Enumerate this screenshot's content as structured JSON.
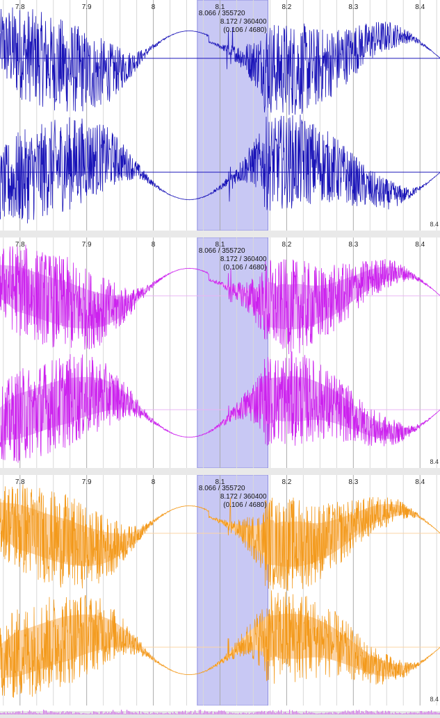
{
  "time_axis": {
    "ticks": [
      {
        "value": 7.8,
        "label": "7.8"
      },
      {
        "value": 7.9,
        "label": "7.9"
      },
      {
        "value": 8.0,
        "label": "8"
      },
      {
        "value": 8.1,
        "label": "8.1"
      },
      {
        "value": 8.2,
        "label": "8.2"
      },
      {
        "value": 8.3,
        "label": "8.3"
      },
      {
        "value": 8.4,
        "label": "8.4"
      }
    ],
    "view_start": 7.77,
    "view_end": 8.43
  },
  "selection": {
    "start": 8.066,
    "end": 8.172,
    "start_label": "8.066 / 355720",
    "end_label": "8.172 / 360400",
    "duration_label": "(0.106 / 4680)"
  },
  "panes": [
    {
      "name": "waveform-pane-1",
      "style": "line",
      "color": "#1a14b8",
      "fill_color": "",
      "corner_label": "8.4"
    },
    {
      "name": "waveform-pane-2",
      "style": "filled",
      "color": "#cc22ee",
      "fill_color": "#e8b4f4",
      "corner_label": "8.4"
    },
    {
      "name": "waveform-pane-3",
      "style": "filled",
      "color": "#f39a1c",
      "fill_color": "#fbd4a6",
      "corner_label": "8.4"
    }
  ],
  "colors": {
    "selection_fill": "#c8c8f4",
    "selection_border": "#8c8ce0",
    "grid": "#c8c8c8",
    "overview_wave": "#d070e8"
  }
}
